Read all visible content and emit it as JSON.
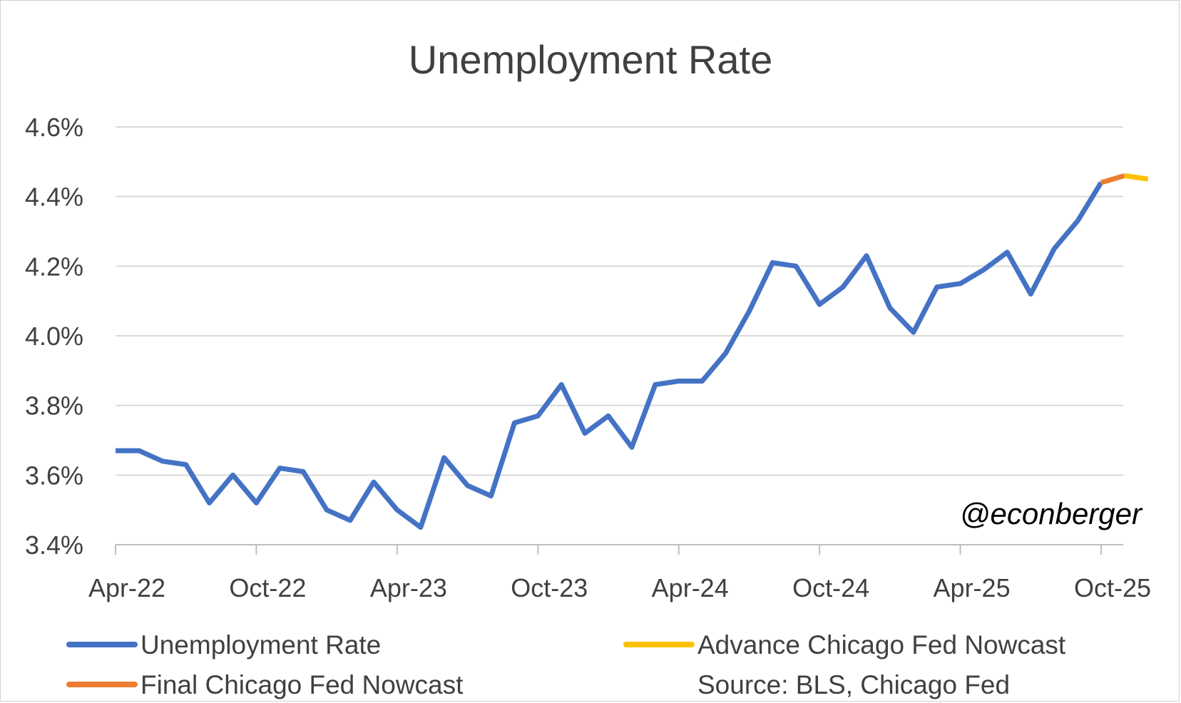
{
  "chart_data": {
    "type": "line",
    "title": "Unemployment Rate",
    "y_tick_labels": [
      "3.4%",
      "3.6%",
      "3.8%",
      "4.0%",
      "4.2%",
      "4.4%",
      "4.6%"
    ],
    "ylim": [
      3.4,
      4.6
    ],
    "x_tick_labels": [
      "Apr-22",
      "Oct-22",
      "Apr-23",
      "Oct-23",
      "Apr-24",
      "Oct-24",
      "Apr-25",
      "Oct-25"
    ],
    "x_range": [
      "Apr-22",
      "Oct-25"
    ],
    "grid": true,
    "legend_position": "bottom",
    "series": [
      {
        "name": "Unemployment Rate",
        "color": "#4472C4",
        "points": [
          [
            "Apr-22",
            3.67
          ],
          [
            "May-22",
            3.67
          ],
          [
            "Jun-22",
            3.64
          ],
          [
            "Jul-22",
            3.63
          ],
          [
            "Aug-22",
            3.52
          ],
          [
            "Sep-22",
            3.6
          ],
          [
            "Oct-22",
            3.52
          ],
          [
            "Nov-22",
            3.62
          ],
          [
            "Dec-22",
            3.61
          ],
          [
            "Jan-23",
            3.5
          ],
          [
            "Feb-23",
            3.47
          ],
          [
            "Mar-23",
            3.58
          ],
          [
            "Apr-23",
            3.5
          ],
          [
            "May-23",
            3.45
          ],
          [
            "Jun-23",
            3.65
          ],
          [
            "Jul-23",
            3.57
          ],
          [
            "Aug-23",
            3.54
          ],
          [
            "Sep-23",
            3.75
          ],
          [
            "Oct-23",
            3.77
          ],
          [
            "Nov-23",
            3.86
          ],
          [
            "Dec-23",
            3.72
          ],
          [
            "Jan-24",
            3.77
          ],
          [
            "Feb-24",
            3.68
          ],
          [
            "Mar-24",
            3.86
          ],
          [
            "Apr-24",
            3.87
          ],
          [
            "May-24",
            3.87
          ],
          [
            "Jun-24",
            3.95
          ],
          [
            "Jul-24",
            4.07
          ],
          [
            "Aug-24",
            4.21
          ],
          [
            "Sep-24",
            4.2
          ],
          [
            "Oct-24",
            4.09
          ],
          [
            "Nov-24",
            4.14
          ],
          [
            "Dec-24",
            4.23
          ],
          [
            "Jan-25",
            4.08
          ],
          [
            "Feb-25",
            4.01
          ],
          [
            "Mar-25",
            4.14
          ],
          [
            "Apr-25",
            4.15
          ],
          [
            "May-25",
            4.19
          ],
          [
            "Jun-25",
            4.24
          ],
          [
            "Jul-25",
            4.12
          ],
          [
            "Aug-25",
            4.25
          ],
          [
            "Sep-25",
            4.33
          ],
          [
            "Oct-25",
            4.44
          ]
        ]
      },
      {
        "name": "Final Chicago Fed Nowcast",
        "color": "#ED7D31",
        "points": [
          [
            "Oct-25",
            4.44
          ],
          [
            "Nov-25",
            4.46
          ]
        ]
      },
      {
        "name": "Advance Chicago Fed Nowcast",
        "color": "#FFC000",
        "points": [
          [
            "Nov-25",
            4.46
          ],
          [
            "Dec-25",
            4.45
          ]
        ]
      }
    ],
    "source_note": "Source: BLS, Chicago Fed",
    "credit": "@econberger"
  }
}
